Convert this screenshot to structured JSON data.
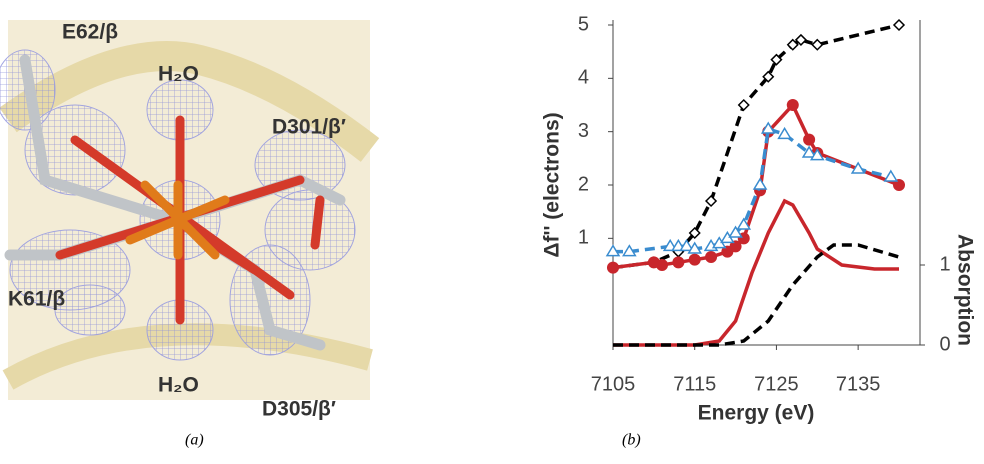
{
  "panel_a": {
    "labels": [
      "E62/β",
      "H₂O",
      "D301/β′",
      "K61/β",
      "H₂O",
      "D305/β′"
    ],
    "caption": "(a)"
  },
  "caption_b": "(b)",
  "chart_data": {
    "type": "line",
    "y_label": "Δf'' (electrons)",
    "x_label": "Energy (eV)",
    "y2_label": "Absorption",
    "xlim": [
      7105,
      7140
    ],
    "xticks": [
      7105,
      7115,
      7125,
      7135
    ],
    "ylim": [
      -1,
      5
    ],
    "yticks": [
      1,
      2,
      3,
      4,
      5
    ],
    "y2lim": [
      0,
      4
    ],
    "y2ticks": [
      0,
      1
    ],
    "series": [
      {
        "color": "#000000",
        "dash": true,
        "marker": "diamond",
        "x": [
          7105,
          7110,
          7113,
          7115,
          7117,
          7121,
          7124,
          7125,
          7127,
          7128,
          7130,
          7140
        ],
        "values": [
          0.45,
          0.55,
          0.75,
          1.1,
          1.7,
          3.5,
          4.03,
          4.35,
          4.63,
          4.72,
          4.63,
          5.0
        ]
      },
      {
        "color": "#c8262c",
        "dash": false,
        "marker": "circle",
        "x": [
          7105,
          7110,
          7111,
          7113,
          7115,
          7117,
          7119,
          7120,
          7121,
          7123,
          7124,
          7127,
          7129,
          7130,
          7140
        ],
        "values": [
          0.45,
          0.55,
          0.5,
          0.55,
          0.6,
          0.65,
          0.75,
          0.85,
          1.0,
          1.9,
          3.0,
          3.5,
          2.85,
          2.6,
          2.0
        ]
      },
      {
        "color": "#3a8ccf",
        "dash": true,
        "marker": "triangle",
        "x": [
          7105,
          7107,
          7112,
          7113,
          7114,
          7115,
          7117,
          7118,
          7119,
          7120,
          7121,
          7123,
          7124,
          7126,
          7129,
          7130,
          7135,
          7139
        ],
        "values": [
          0.75,
          0.75,
          0.85,
          0.85,
          0.85,
          0.8,
          0.85,
          0.9,
          1.0,
          1.1,
          1.25,
          2.0,
          3.05,
          2.95,
          2.6,
          2.55,
          2.3,
          2.15
        ]
      },
      {
        "color": "#c8262c",
        "dash": false,
        "axis": "y2",
        "x": [
          7105,
          7115,
          7118,
          7120,
          7122,
          7124,
          7126,
          7127,
          7129,
          7130,
          7133,
          7137,
          7140
        ],
        "values": [
          0,
          0,
          0.05,
          0.3,
          0.9,
          1.4,
          1.8,
          1.75,
          1.4,
          1.2,
          1.0,
          0.95,
          0.95
        ]
      },
      {
        "color": "#000000",
        "dash": true,
        "axis": "y2",
        "x": [
          7105,
          7118,
          7121,
          7124,
          7127,
          7130,
          7132,
          7135,
          7140
        ],
        "values": [
          0,
          0,
          0.05,
          0.3,
          0.75,
          1.1,
          1.25,
          1.25,
          1.1
        ]
      }
    ]
  }
}
